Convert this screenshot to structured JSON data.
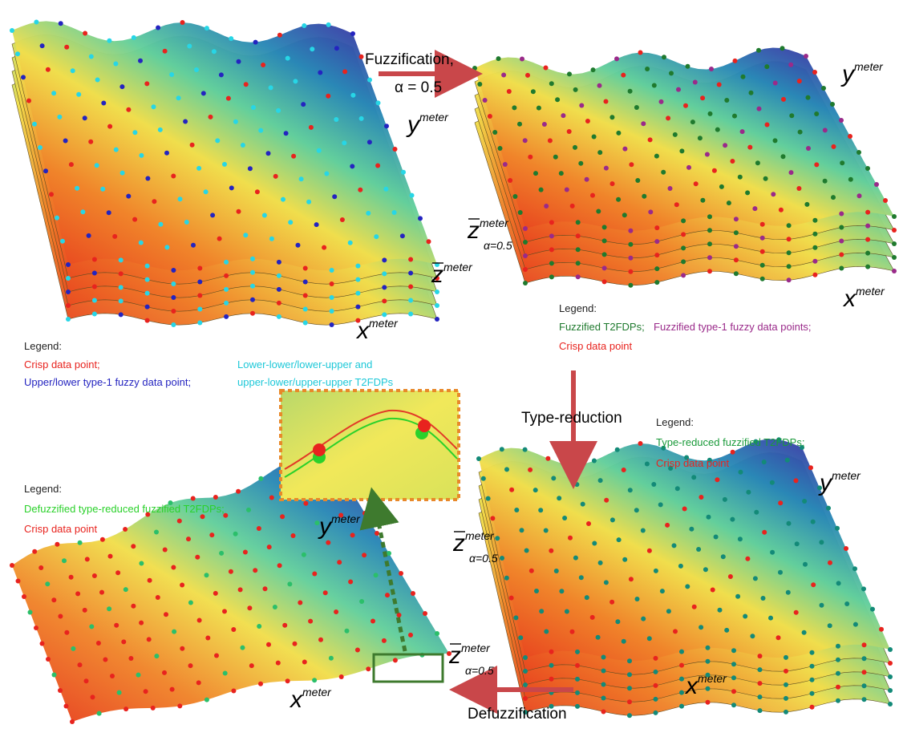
{
  "steps": {
    "fuzzification": [
      "Fuzzification,",
      "α = 0.5"
    ],
    "type_reduction": "Type-reduction",
    "defuzzification": "Defuzzification"
  },
  "panels": [
    {
      "legend": {
        "title": "Legend:",
        "items": [
          "Crisp data point;",
          "Upper/lower type-1 fuzzy data point;",
          "Lower-lower/lower-upper and",
          "upper-lower/upper-upper T2FDPs"
        ]
      },
      "axes": {
        "x": [
          "x",
          "meter"
        ],
        "y": [
          "y",
          "meter"
        ],
        "z": [
          "z",
          "meter"
        ]
      }
    },
    {
      "legend": {
        "title": "Legend:",
        "items": [
          "Fuzzified T2FDPs;",
          "Fuzzified type-1 fuzzy data points;",
          "Crisp data point"
        ]
      },
      "axes": {
        "x": [
          "x",
          "meter"
        ],
        "y": [
          "y",
          "meter"
        ],
        "z": [
          "z",
          "meter",
          "α=0.5"
        ]
      }
    },
    {
      "legend": {
        "title": "Legend:",
        "items": [
          "Type-reduced fuzzified T2FDPs;",
          "Crisp data point"
        ]
      },
      "axes": {
        "x": [
          "x",
          "meter"
        ],
        "y": [
          "y",
          "meter"
        ],
        "z": [
          "z",
          "meter",
          "α=0.5"
        ]
      }
    },
    {
      "legend": {
        "title": "Legend:",
        "items": [
          "Defuzzified type-reduced fuzzified T2FDPs;",
          "Crisp data point"
        ]
      },
      "axes": {
        "x": [
          "x",
          "meter"
        ],
        "y": [
          "y",
          "meter"
        ],
        "z": [
          "z",
          "meter",
          "α=0.5"
        ]
      }
    }
  ]
}
